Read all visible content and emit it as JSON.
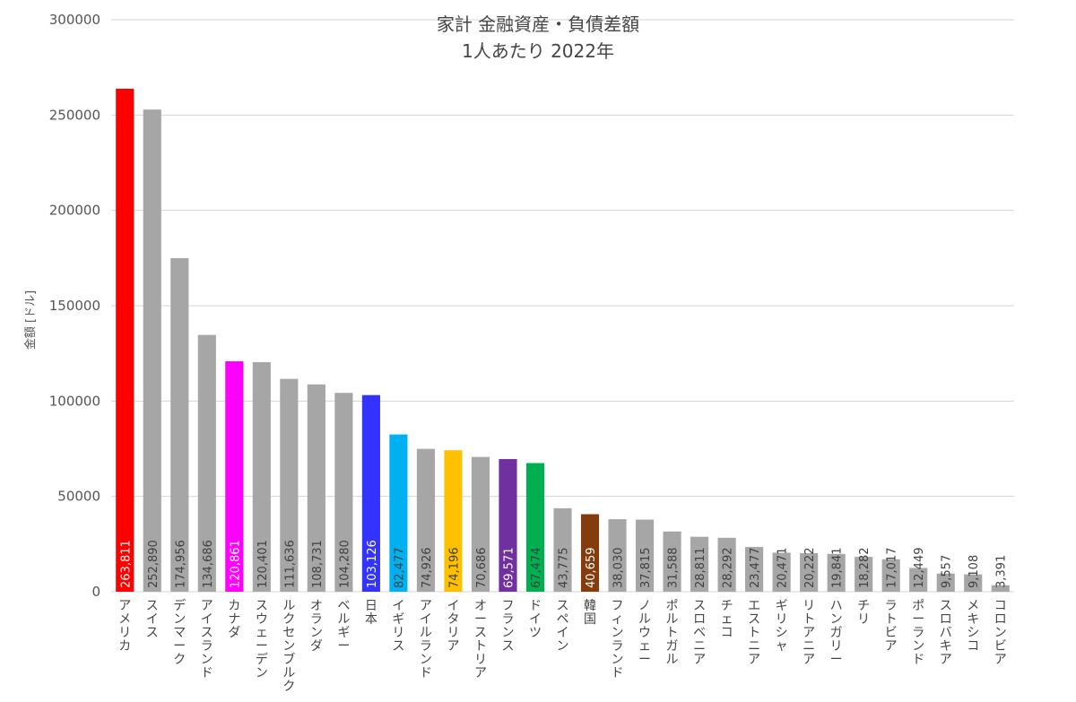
{
  "chart_data": {
    "type": "bar",
    "title": [
      "家計 金融資産・負債差額",
      "1人あたり 2022年"
    ],
    "ylabel": "金額 [ドル]",
    "ylim": [
      0,
      300000
    ],
    "yticks": [
      "0",
      "50000",
      "100000",
      "150000",
      "200000",
      "250000",
      "300000"
    ],
    "grid": true,
    "categories": [
      "アメリカ",
      "スイス",
      "デンマーク",
      "アイスランド",
      "カナダ",
      "スウェーデン",
      "ルクセンブルク",
      "オランダ",
      "ベルギー",
      "日本",
      "イギリス",
      "アイルランド",
      "イタリア",
      "オーストリア",
      "フランス",
      "ドイツ",
      "スペイン",
      "韓国",
      "フィンランド",
      "ノルウェー",
      "ポルトガル",
      "スロベニア",
      "チェコ",
      "エストニア",
      "ギリシャ",
      "リトアニア",
      "ハンガリー",
      "チリ",
      "ラトビア",
      "ポーランド",
      "スロバキア",
      "メキシコ",
      "コロンビア"
    ],
    "values": [
      263811,
      252890,
      174956,
      134686,
      120861,
      120401,
      111636,
      108731,
      104280,
      103126,
      82477,
      74926,
      74196,
      70686,
      69571,
      67474,
      43775,
      40659,
      38030,
      37815,
      31588,
      28811,
      28292,
      23477,
      20471,
      20222,
      19841,
      18282,
      17017,
      12449,
      9557,
      9108,
      3391
    ],
    "value_labels": [
      "263,811",
      "252,890",
      "174,956",
      "134,686",
      "120,861",
      "120,401",
      "111,636",
      "108,731",
      "104,280",
      "103,126",
      "82,477",
      "74,926",
      "74,196",
      "70,686",
      "69,571",
      "67,474",
      "43,775",
      "40,659",
      "38,030",
      "37,815",
      "31,588",
      "28,811",
      "28,292",
      "23,477",
      "20,471",
      "20,222",
      "19,841",
      "18,282",
      "17,017",
      "12,449",
      "9,557",
      "9,108",
      "3,391"
    ],
    "colors": [
      "#ff0000",
      "#a6a6a6",
      "#a6a6a6",
      "#a6a6a6",
      "#ff00ff",
      "#a6a6a6",
      "#a6a6a6",
      "#a6a6a6",
      "#a6a6a6",
      "#3333ff",
      "#00b0f0",
      "#a6a6a6",
      "#ffc000",
      "#a6a6a6",
      "#7030a0",
      "#00b050",
      "#a6a6a6",
      "#843c0c",
      "#a6a6a6",
      "#a6a6a6",
      "#a6a6a6",
      "#a6a6a6",
      "#a6a6a6",
      "#a6a6a6",
      "#a6a6a6",
      "#a6a6a6",
      "#a6a6a6",
      "#a6a6a6",
      "#a6a6a6",
      "#a6a6a6",
      "#a6a6a6",
      "#a6a6a6",
      "#a6a6a6"
    ],
    "label_colors": [
      "#ffffff",
      "#404040",
      "#404040",
      "#404040",
      "#ffffff",
      "#404040",
      "#404040",
      "#404040",
      "#404040",
      "#ffffff",
      "#404040",
      "#404040",
      "#404040",
      "#404040",
      "#ffffff",
      "#404040",
      "#404040",
      "#ffffff",
      "#404040",
      "#404040",
      "#404040",
      "#404040",
      "#404040",
      "#404040",
      "#404040",
      "#404040",
      "#404040",
      "#404040",
      "#404040",
      "#404040",
      "#404040",
      "#404040",
      "#404040"
    ]
  }
}
